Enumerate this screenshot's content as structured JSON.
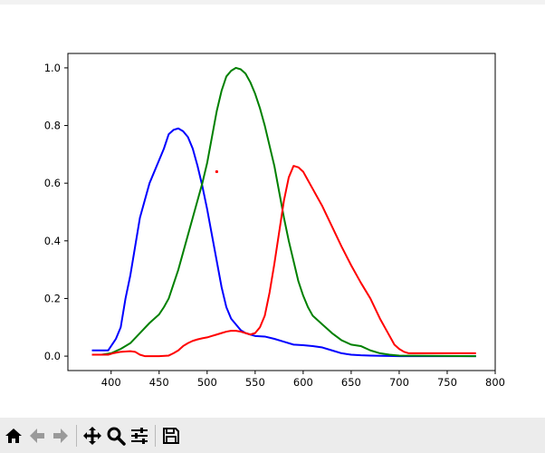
{
  "chart_data": {
    "type": "line",
    "title": "",
    "xlabel": "",
    "ylabel": "",
    "xlim": [
      355,
      800
    ],
    "ylim": [
      -0.05,
      1.05
    ],
    "xticks": [
      400,
      450,
      500,
      550,
      600,
      650,
      700,
      750,
      800
    ],
    "yticks": [
      0.0,
      0.2,
      0.4,
      0.6,
      0.8,
      1.0
    ],
    "xtick_labels": [
      "400",
      "450",
      "500",
      "550",
      "600",
      "650",
      "700",
      "750",
      "800"
    ],
    "ytick_labels": [
      "0.0",
      "0.2",
      "0.4",
      "0.6",
      "0.8",
      "1.0"
    ],
    "grid": false,
    "series": [
      {
        "color": "#0000ff",
        "points": [
          [
            380,
            0.02
          ],
          [
            390,
            0.02
          ],
          [
            397,
            0.02
          ],
          [
            405,
            0.06
          ],
          [
            410,
            0.1
          ],
          [
            415,
            0.2
          ],
          [
            420,
            0.28
          ],
          [
            425,
            0.38
          ],
          [
            430,
            0.48
          ],
          [
            440,
            0.6
          ],
          [
            450,
            0.68
          ],
          [
            455,
            0.72
          ],
          [
            460,
            0.77
          ],
          [
            465,
            0.785
          ],
          [
            470,
            0.79
          ],
          [
            475,
            0.78
          ],
          [
            480,
            0.76
          ],
          [
            485,
            0.72
          ],
          [
            490,
            0.66
          ],
          [
            495,
            0.59
          ],
          [
            500,
            0.51
          ],
          [
            505,
            0.42
          ],
          [
            510,
            0.33
          ],
          [
            515,
            0.24
          ],
          [
            520,
            0.17
          ],
          [
            525,
            0.13
          ],
          [
            530,
            0.11
          ],
          [
            535,
            0.09
          ],
          [
            540,
            0.08
          ],
          [
            545,
            0.075
          ],
          [
            550,
            0.07
          ],
          [
            560,
            0.068
          ],
          [
            570,
            0.06
          ],
          [
            580,
            0.05
          ],
          [
            590,
            0.04
          ],
          [
            600,
            0.038
          ],
          [
            610,
            0.035
          ],
          [
            620,
            0.03
          ],
          [
            630,
            0.02
          ],
          [
            640,
            0.01
          ],
          [
            650,
            0.005
          ],
          [
            660,
            0.003
          ],
          [
            670,
            0.002
          ],
          [
            700,
            0.0
          ],
          [
            780,
            0.0
          ]
        ]
      },
      {
        "color": "#008000",
        "points": [
          [
            380,
            0.005
          ],
          [
            390,
            0.005
          ],
          [
            400,
            0.01
          ],
          [
            410,
            0.025
          ],
          [
            420,
            0.045
          ],
          [
            430,
            0.08
          ],
          [
            440,
            0.115
          ],
          [
            450,
            0.145
          ],
          [
            455,
            0.17
          ],
          [
            460,
            0.2
          ],
          [
            465,
            0.25
          ],
          [
            470,
            0.3
          ],
          [
            475,
            0.36
          ],
          [
            480,
            0.42
          ],
          [
            485,
            0.48
          ],
          [
            490,
            0.54
          ],
          [
            495,
            0.6
          ],
          [
            500,
            0.67
          ],
          [
            505,
            0.76
          ],
          [
            510,
            0.85
          ],
          [
            515,
            0.92
          ],
          [
            520,
            0.97
          ],
          [
            525,
            0.99
          ],
          [
            530,
            1.0
          ],
          [
            535,
            0.995
          ],
          [
            540,
            0.98
          ],
          [
            545,
            0.95
          ],
          [
            550,
            0.91
          ],
          [
            555,
            0.86
          ],
          [
            560,
            0.8
          ],
          [
            565,
            0.73
          ],
          [
            570,
            0.66
          ],
          [
            575,
            0.57
          ],
          [
            580,
            0.48
          ],
          [
            585,
            0.4
          ],
          [
            590,
            0.33
          ],
          [
            595,
            0.26
          ],
          [
            600,
            0.21
          ],
          [
            605,
            0.17
          ],
          [
            610,
            0.14
          ],
          [
            620,
            0.11
          ],
          [
            630,
            0.08
          ],
          [
            640,
            0.055
          ],
          [
            650,
            0.04
          ],
          [
            660,
            0.035
          ],
          [
            670,
            0.02
          ],
          [
            680,
            0.01
          ],
          [
            690,
            0.005
          ],
          [
            700,
            0.002
          ],
          [
            780,
            0.0
          ]
        ]
      },
      {
        "color": "#ff0000",
        "points": [
          [
            380,
            0.005
          ],
          [
            390,
            0.005
          ],
          [
            397,
            0.005
          ],
          [
            402,
            0.01
          ],
          [
            410,
            0.015
          ],
          [
            420,
            0.017
          ],
          [
            425,
            0.015
          ],
          [
            430,
            0.005
          ],
          [
            435,
            0.0
          ],
          [
            450,
            0.0
          ],
          [
            460,
            0.002
          ],
          [
            465,
            0.01
          ],
          [
            470,
            0.02
          ],
          [
            475,
            0.035
          ],
          [
            480,
            0.045
          ],
          [
            485,
            0.053
          ],
          [
            490,
            0.058
          ],
          [
            495,
            0.062
          ],
          [
            500,
            0.065
          ],
          [
            505,
            0.07
          ],
          [
            510,
            0.075
          ],
          [
            515,
            0.08
          ],
          [
            520,
            0.085
          ],
          [
            525,
            0.088
          ],
          [
            530,
            0.088
          ],
          [
            535,
            0.085
          ],
          [
            540,
            0.08
          ],
          [
            545,
            0.075
          ],
          [
            550,
            0.08
          ],
          [
            555,
            0.1
          ],
          [
            560,
            0.14
          ],
          [
            565,
            0.22
          ],
          [
            570,
            0.32
          ],
          [
            575,
            0.43
          ],
          [
            580,
            0.54
          ],
          [
            585,
            0.62
          ],
          [
            590,
            0.66
          ],
          [
            595,
            0.655
          ],
          [
            600,
            0.64
          ],
          [
            605,
            0.61
          ],
          [
            610,
            0.58
          ],
          [
            620,
            0.52
          ],
          [
            630,
            0.45
          ],
          [
            640,
            0.38
          ],
          [
            650,
            0.315
          ],
          [
            660,
            0.255
          ],
          [
            670,
            0.2
          ],
          [
            680,
            0.13
          ],
          [
            690,
            0.07
          ],
          [
            695,
            0.04
          ],
          [
            700,
            0.025
          ],
          [
            705,
            0.015
          ],
          [
            710,
            0.01
          ],
          [
            720,
            0.01
          ],
          [
            780,
            0.01
          ]
        ]
      },
      {
        "color": "#ff0000",
        "style": "marker",
        "points": [
          [
            510,
            0.64
          ]
        ]
      }
    ]
  },
  "toolbar": {
    "buttons": [
      {
        "name": "home-button",
        "icon": "home-icon"
      },
      {
        "name": "back-button",
        "icon": "arrow-left-icon"
      },
      {
        "name": "forward-button",
        "icon": "arrow-right-icon"
      },
      {
        "name": "pan-button",
        "icon": "move-icon"
      },
      {
        "name": "zoom-button",
        "icon": "magnifier-icon"
      },
      {
        "name": "configure-subplots-button",
        "icon": "sliders-icon"
      },
      {
        "name": "save-button",
        "icon": "floppy-disk-icon"
      }
    ]
  }
}
